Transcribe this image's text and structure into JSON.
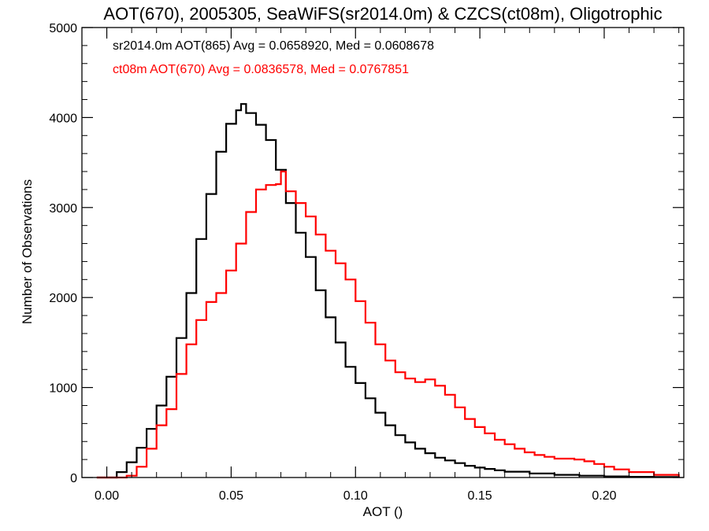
{
  "chart_data": {
    "type": "line",
    "title": "AOT(670), 2005305, SeaWiFS(sr2014.0m) & CZCS(ct08m), Oligotrophic",
    "xlabel": "AOT ()",
    "ylabel": "Number of Observations",
    "xlim": [
      -0.01,
      0.232
    ],
    "ylim": [
      0,
      5000
    ],
    "x_ticks": [
      0.0,
      0.05,
      0.1,
      0.15,
      0.2
    ],
    "x_tick_labels": [
      "0.00",
      "0.05",
      "0.10",
      "0.15",
      "0.20"
    ],
    "y_ticks": [
      0,
      1000,
      2000,
      3000,
      4000,
      5000
    ],
    "y_tick_labels": [
      "0",
      "1000",
      "2000",
      "3000",
      "4000",
      "5000"
    ],
    "grid": false,
    "legend_placement": "top-left",
    "step": true,
    "series": [
      {
        "name": "sr2014.0m AOT(865) Avg = 0.0658920, Med = 0.0608678",
        "color": "#000000",
        "x": [
          -0.004,
          0.0,
          0.004,
          0.008,
          0.012,
          0.016,
          0.02,
          0.024,
          0.028,
          0.032,
          0.036,
          0.04,
          0.044,
          0.048,
          0.052,
          0.054,
          0.056,
          0.06,
          0.064,
          0.068,
          0.072,
          0.076,
          0.08,
          0.084,
          0.088,
          0.092,
          0.096,
          0.1,
          0.104,
          0.108,
          0.112,
          0.116,
          0.12,
          0.124,
          0.128,
          0.132,
          0.136,
          0.14,
          0.144,
          0.148,
          0.152,
          0.156,
          0.16,
          0.17,
          0.18,
          0.19,
          0.2,
          0.21,
          0.22,
          0.23
        ],
        "values": [
          0,
          0,
          60,
          170,
          330,
          540,
          800,
          1120,
          1550,
          2050,
          2650,
          3150,
          3620,
          3930,
          4080,
          4150,
          4050,
          3920,
          3750,
          3420,
          3050,
          2720,
          2450,
          2080,
          1780,
          1500,
          1230,
          1050,
          880,
          720,
          580,
          470,
          390,
          320,
          270,
          220,
          190,
          160,
          130,
          110,
          95,
          80,
          65,
          45,
          30,
          20,
          12,
          8,
          5,
          0
        ]
      },
      {
        "name": "ct08m AOT(670) Avg = 0.0836578, Med = 0.0767851",
        "color": "#ff0000",
        "x": [
          -0.004,
          0.0,
          0.004,
          0.008,
          0.012,
          0.016,
          0.02,
          0.024,
          0.028,
          0.032,
          0.036,
          0.04,
          0.044,
          0.048,
          0.052,
          0.056,
          0.06,
          0.064,
          0.068,
          0.07,
          0.072,
          0.076,
          0.08,
          0.084,
          0.088,
          0.092,
          0.096,
          0.1,
          0.104,
          0.108,
          0.112,
          0.116,
          0.12,
          0.124,
          0.128,
          0.132,
          0.136,
          0.14,
          0.144,
          0.148,
          0.152,
          0.156,
          0.16,
          0.164,
          0.168,
          0.172,
          0.176,
          0.18,
          0.184,
          0.188,
          0.192,
          0.196,
          0.2,
          0.204,
          0.21,
          0.22,
          0.23
        ],
        "values": [
          0,
          0,
          0,
          20,
          120,
          320,
          580,
          760,
          1150,
          1480,
          1750,
          1950,
          2050,
          2300,
          2600,
          2950,
          3200,
          3250,
          3260,
          3400,
          3180,
          3050,
          2900,
          2700,
          2520,
          2380,
          2200,
          1960,
          1720,
          1480,
          1300,
          1170,
          1100,
          1060,
          1090,
          1020,
          920,
          780,
          650,
          560,
          490,
          420,
          370,
          320,
          280,
          250,
          230,
          210,
          210,
          200,
          180,
          150,
          120,
          90,
          60,
          30,
          10
        ]
      }
    ]
  }
}
